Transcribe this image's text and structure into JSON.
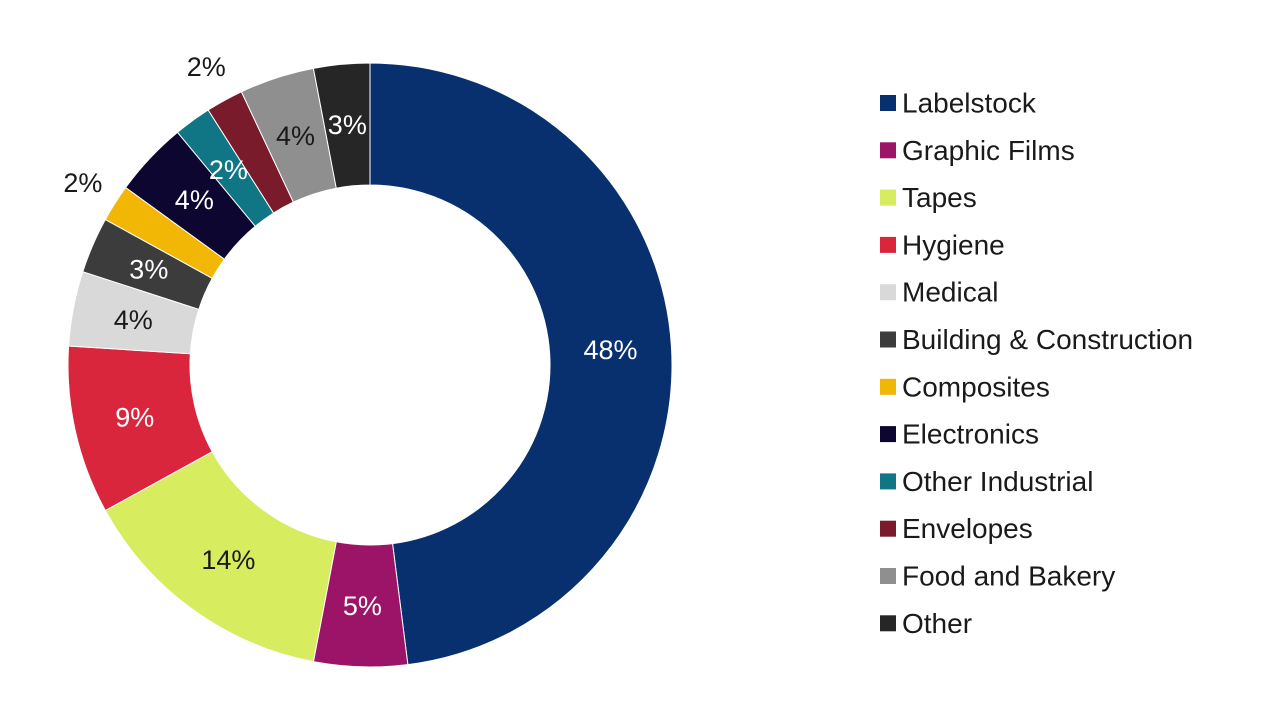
{
  "chart_data": {
    "type": "pie",
    "variant": "donut",
    "title": "",
    "legend_position": "right",
    "slices": [
      {
        "label": "Labelstock",
        "value": 48,
        "display": "48%",
        "color": "#08306f",
        "label_color": "#ffffff"
      },
      {
        "label": "Graphic Films",
        "value": 5,
        "display": "5%",
        "color": "#9b1468",
        "label_color": "#ffffff"
      },
      {
        "label": "Tapes",
        "value": 14,
        "display": "14%",
        "color": "#d7ec5e",
        "label_color": "#1a1a1a"
      },
      {
        "label": "Hygiene",
        "value": 9,
        "display": "9%",
        "color": "#d9263d",
        "label_color": "#ffffff"
      },
      {
        "label": "Medical",
        "value": 4,
        "display": "4%",
        "color": "#d9d9d9",
        "label_color": "#1a1a1a"
      },
      {
        "label": "Building & Construction",
        "value": 3,
        "display": "3%",
        "color": "#3c3c3c",
        "label_color": "#ffffff"
      },
      {
        "label": "Composites",
        "value": 2,
        "display": "2%",
        "color": "#f2b705",
        "label_color": "#1a1a1a",
        "outside": true
      },
      {
        "label": "Electronics",
        "value": 4,
        "display": "4%",
        "color": "#0d0630",
        "label_color": "#ffffff"
      },
      {
        "label": "Other Industrial",
        "value": 2,
        "display": "2%",
        "color": "#107585",
        "label_color": "#ffffff"
      },
      {
        "label": "Envelopes",
        "value": 2,
        "display": "2%",
        "color": "#7a1b2b",
        "label_color": "#1a1a1a",
        "outside": true
      },
      {
        "label": "Food and Bakery",
        "value": 4,
        "display": "4%",
        "color": "#8f8f8f",
        "label_color": "#1a1a1a"
      },
      {
        "label": "Other",
        "value": 3,
        "display": "3%",
        "color": "#262626",
        "label_color": "#ffffff"
      }
    ]
  }
}
